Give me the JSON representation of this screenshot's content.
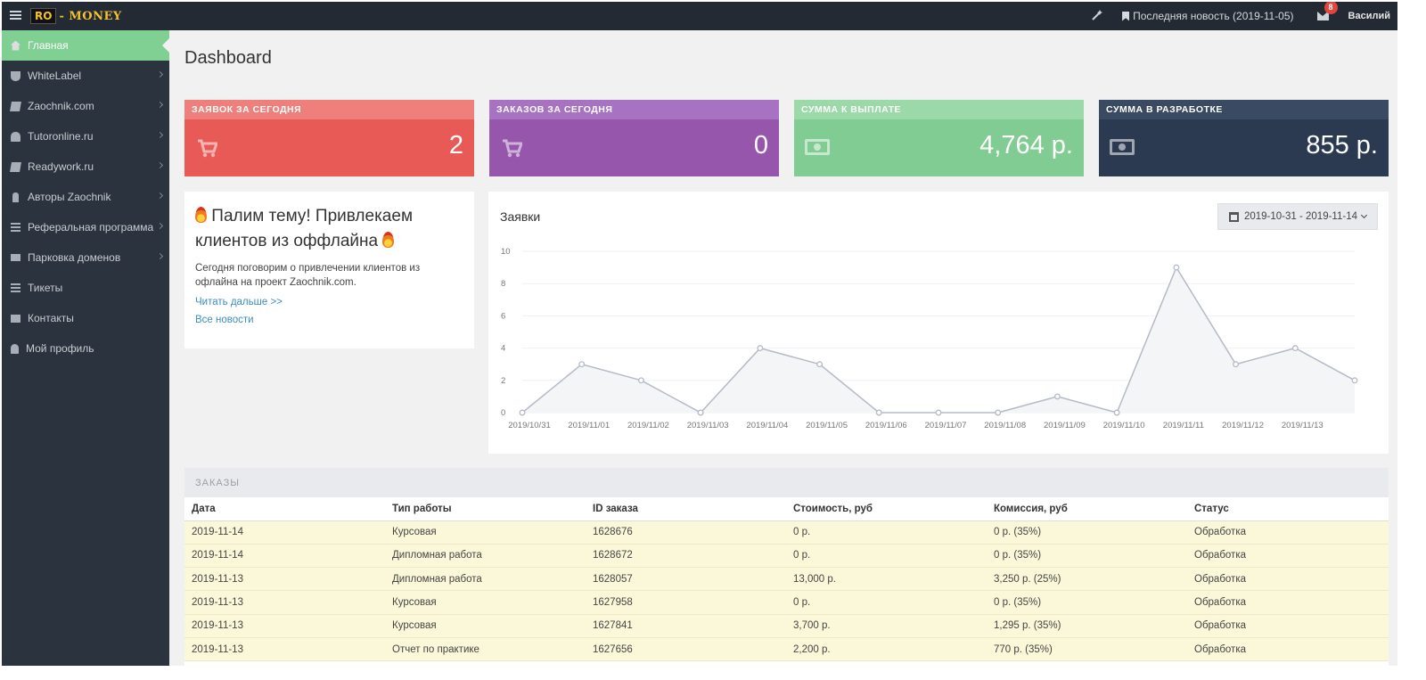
{
  "header": {
    "logo_badge": "RO",
    "logo_text": "- MONEY",
    "news_link": "Последняя новость (2019-11-05)",
    "mail_count": "8",
    "user_name": "Василий"
  },
  "sidebar": {
    "items": [
      {
        "label": "Главная",
        "icon": "home-icon"
      },
      {
        "label": "WhiteLabel",
        "icon": "trophy-icon"
      },
      {
        "label": "Zaochnik.com",
        "icon": "book-icon"
      },
      {
        "label": "Tutoronline.ru",
        "icon": "users-icon"
      },
      {
        "label": "Readywork.ru",
        "icon": "book-icon"
      },
      {
        "label": "Авторы Zaochnik",
        "icon": "person-icon"
      },
      {
        "label": "Реферальная программа",
        "icon": "list-icon"
      },
      {
        "label": "Парковка доменов",
        "icon": "truck-icon"
      },
      {
        "label": "Тикеты",
        "icon": "ticket-icon"
      },
      {
        "label": "Контакты",
        "icon": "envelope-icon"
      },
      {
        "label": "Мой профиль",
        "icon": "user-icon"
      }
    ]
  },
  "page": {
    "title": "Dashboard"
  },
  "stats": [
    {
      "label": "ЗАЯВОК ЗА СЕГОДНЯ",
      "value": "2",
      "icon": "cart-icon",
      "head_color": "#ee7f7b",
      "body_color": "#e85a56"
    },
    {
      "label": "ЗАКАЗОВ ЗА СЕГОДНЯ",
      "value": "0",
      "icon": "cart-icon",
      "head_color": "#a872c2",
      "body_color": "#9556ab"
    },
    {
      "label": "СУММА К ВЫПЛАТЕ",
      "value": "4,764 р.",
      "icon": "money-icon",
      "head_color": "#9bd9a8",
      "body_color": "#81cc92"
    },
    {
      "label": "СУММА В РАЗРАБОТКЕ",
      "value": "855 р.",
      "icon": "money-icon",
      "head_color": "#3a4a62",
      "body_color": "#2c3a51"
    }
  ],
  "news": {
    "title": "Палим тему! Привлекаем клиентов из оффлайна",
    "text": "Сегодня поговорим о привлечении клиентов из офлайна на проект Zaochnik.com.",
    "read_more": "Читать дальше >>",
    "all_news": "Все новости"
  },
  "chart_data": {
    "type": "area",
    "title": "Заявки",
    "date_range": "2019-10-31 - 2019-11-14",
    "x": [
      "2019/10/31",
      "2019/11/01",
      "2019/11/02",
      "2019/11/03",
      "2019/11/04",
      "2019/11/05",
      "2019/11/06",
      "2019/11/07",
      "2019/11/08",
      "2019/11/09",
      "2019/11/10",
      "2019/11/11",
      "2019/11/12",
      "2019/11/13",
      "2019/11/14"
    ],
    "x_tick_labels": [
      "2019/10/31",
      "2019/11/01",
      "2019/11/02",
      "2019/11/03",
      "2019/11/04",
      "2019/11/05",
      "2019/11/06",
      "2019/11/07",
      "2019/11/08",
      "2019/11/09",
      "2019/11/10",
      "2019/11/11",
      "2019/11/12",
      "2019/11/13"
    ],
    "values": [
      0,
      3,
      2,
      0,
      4,
      3,
      0,
      0,
      0,
      1,
      0,
      9,
      3,
      4,
      2
    ],
    "ylim": [
      0,
      10
    ],
    "y_ticks": [
      0,
      2,
      4,
      6,
      8,
      10
    ],
    "grid": true,
    "line_color": "#b4bac6",
    "fill_color": "#f4f5f7"
  },
  "orders": {
    "title": "ЗАКАЗЫ",
    "columns": [
      "Дата",
      "Тип работы",
      "ID заказа",
      "Стоимость, руб",
      "Комиссия, руб",
      "Статус"
    ],
    "rows": [
      [
        "2019-11-14",
        "Курсовая",
        "1628676",
        "0 р.",
        "0 р. (35%)",
        "Обработка"
      ],
      [
        "2019-11-14",
        "Дипломная работа",
        "1628672",
        "0 р.",
        "0 р. (35%)",
        "Обработка"
      ],
      [
        "2019-11-13",
        "Дипломная работа",
        "1628057",
        "13,000 р.",
        "3,250 р. (25%)",
        "Обработка"
      ],
      [
        "2019-11-13",
        "Курсовая",
        "1627958",
        "0 р.",
        "0 р. (35%)",
        "Обработка"
      ],
      [
        "2019-11-13",
        "Курсовая",
        "1627841",
        "3,700 р.",
        "1,295 р. (35%)",
        "Обработка"
      ],
      [
        "2019-11-13",
        "Отчет по практике",
        "1627656",
        "2,200 р.",
        "770 р. (35%)",
        "Обработка"
      ]
    ]
  }
}
